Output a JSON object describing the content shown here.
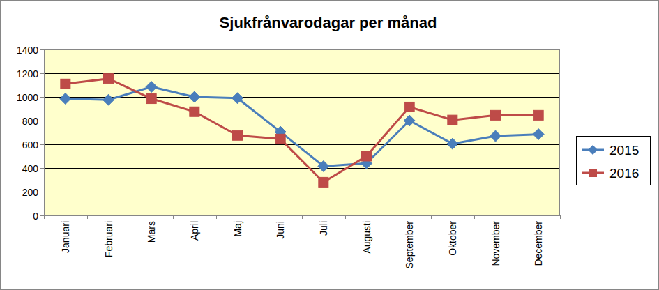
{
  "chart_data": {
    "type": "line",
    "title": "Sjukfrånvarodagar per månad",
    "categories": [
      "Januari",
      "Februari",
      "Mars",
      "April",
      "Maj",
      "Juni",
      "Juli",
      "Augusti",
      "September",
      "Oktober",
      "November",
      "December"
    ],
    "series": [
      {
        "name": "2015",
        "color": "#4a7ebb",
        "marker": "diamond",
        "values": [
          985,
          975,
          1085,
          1000,
          990,
          705,
          415,
          440,
          800,
          605,
          670,
          685
        ]
      },
      {
        "name": "2016",
        "color": "#be4b48",
        "marker": "square",
        "values": [
          1110,
          1155,
          985,
          875,
          675,
          645,
          280,
          500,
          915,
          805,
          845,
          845
        ]
      }
    ],
    "ylim": [
      0,
      1400
    ],
    "yticks": [
      0,
      200,
      400,
      600,
      800,
      1000,
      1200,
      1400
    ],
    "grid": true,
    "legend": "right"
  }
}
